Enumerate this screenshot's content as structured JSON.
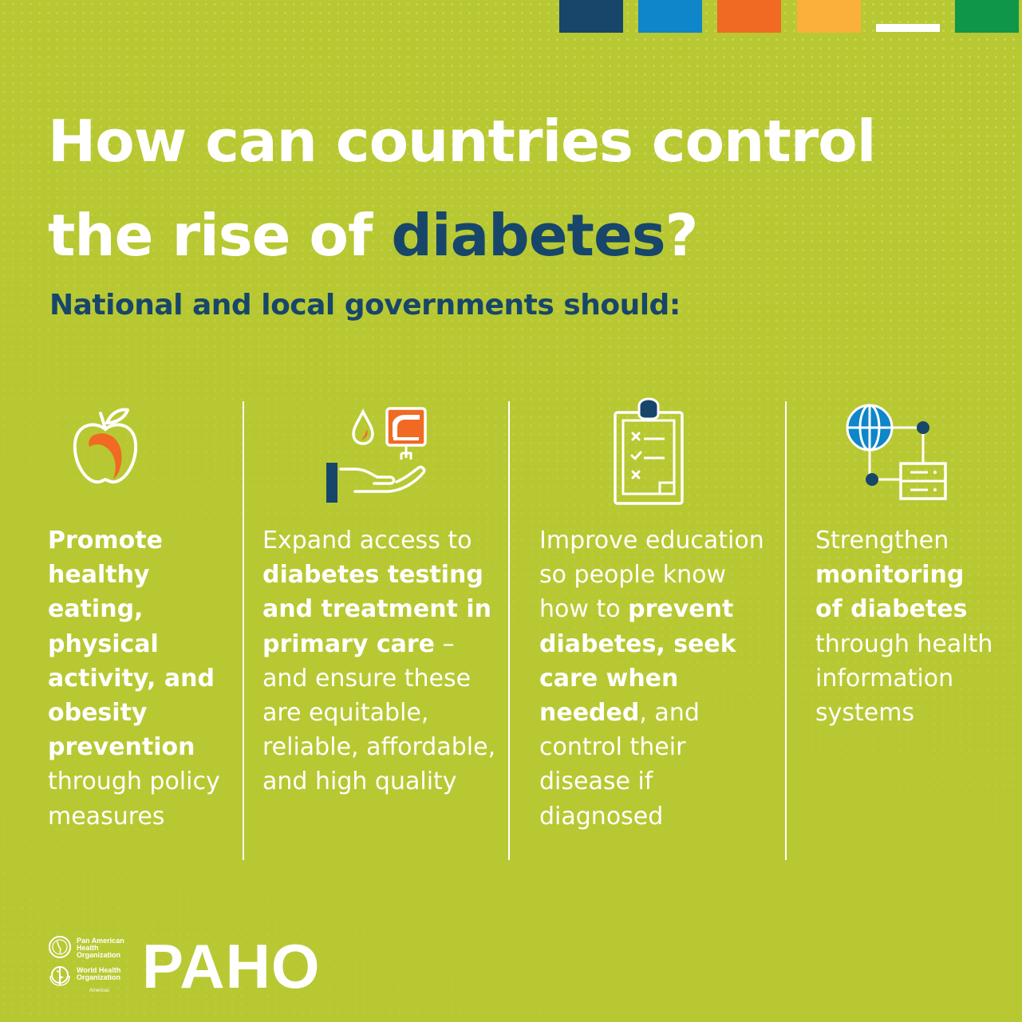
{
  "palette": {
    "background": "#b8c832",
    "navy": "#17466a",
    "blue": "#0e86c9",
    "orange": "#f06a24",
    "yellow": "#fbb03b",
    "green": "#0f9648",
    "white": "#ffffff"
  },
  "header": {
    "title_line1": "How can countries control",
    "title_line2_prefix": "the rise of ",
    "title_line2_accent": "diabetes",
    "title_line2_suffix": "?",
    "subtitle": "National and local governments should:"
  },
  "columns": [
    {
      "icon": "apple-icon",
      "text": [
        {
          "t": "Promote healthy eating, physical activity, and obesity prevention",
          "bold": true
        },
        {
          "t": " through policy measures",
          "bold": false
        }
      ]
    },
    {
      "icon": "testing-treatment-icon",
      "text": [
        {
          "t": "Expand access to ",
          "bold": false
        },
        {
          "t": "diabetes testing and treatment in primary care",
          "bold": true
        },
        {
          "t": " – and ensure these are equitable, reliable, affordable, and high quality",
          "bold": false
        }
      ]
    },
    {
      "icon": "clipboard-checklist-icon",
      "text": [
        {
          "t": "Improve education so people know how to ",
          "bold": false
        },
        {
          "t": "prevent diabetes, seek care when needed",
          "bold": true
        },
        {
          "t": ", and control their disease if diagnosed",
          "bold": false
        }
      ]
    },
    {
      "icon": "health-information-system-icon",
      "text": [
        {
          "t": "Strengthen ",
          "bold": false
        },
        {
          "t": "monitoring of diabetes",
          "bold": true
        },
        {
          "t": " through health information systems",
          "bold": false
        }
      ]
    }
  ],
  "footer": {
    "org1": "Pan American Health Organization",
    "org2": "World Health Organization",
    "org2_region": "Americas",
    "logo_word": "PAHO"
  }
}
